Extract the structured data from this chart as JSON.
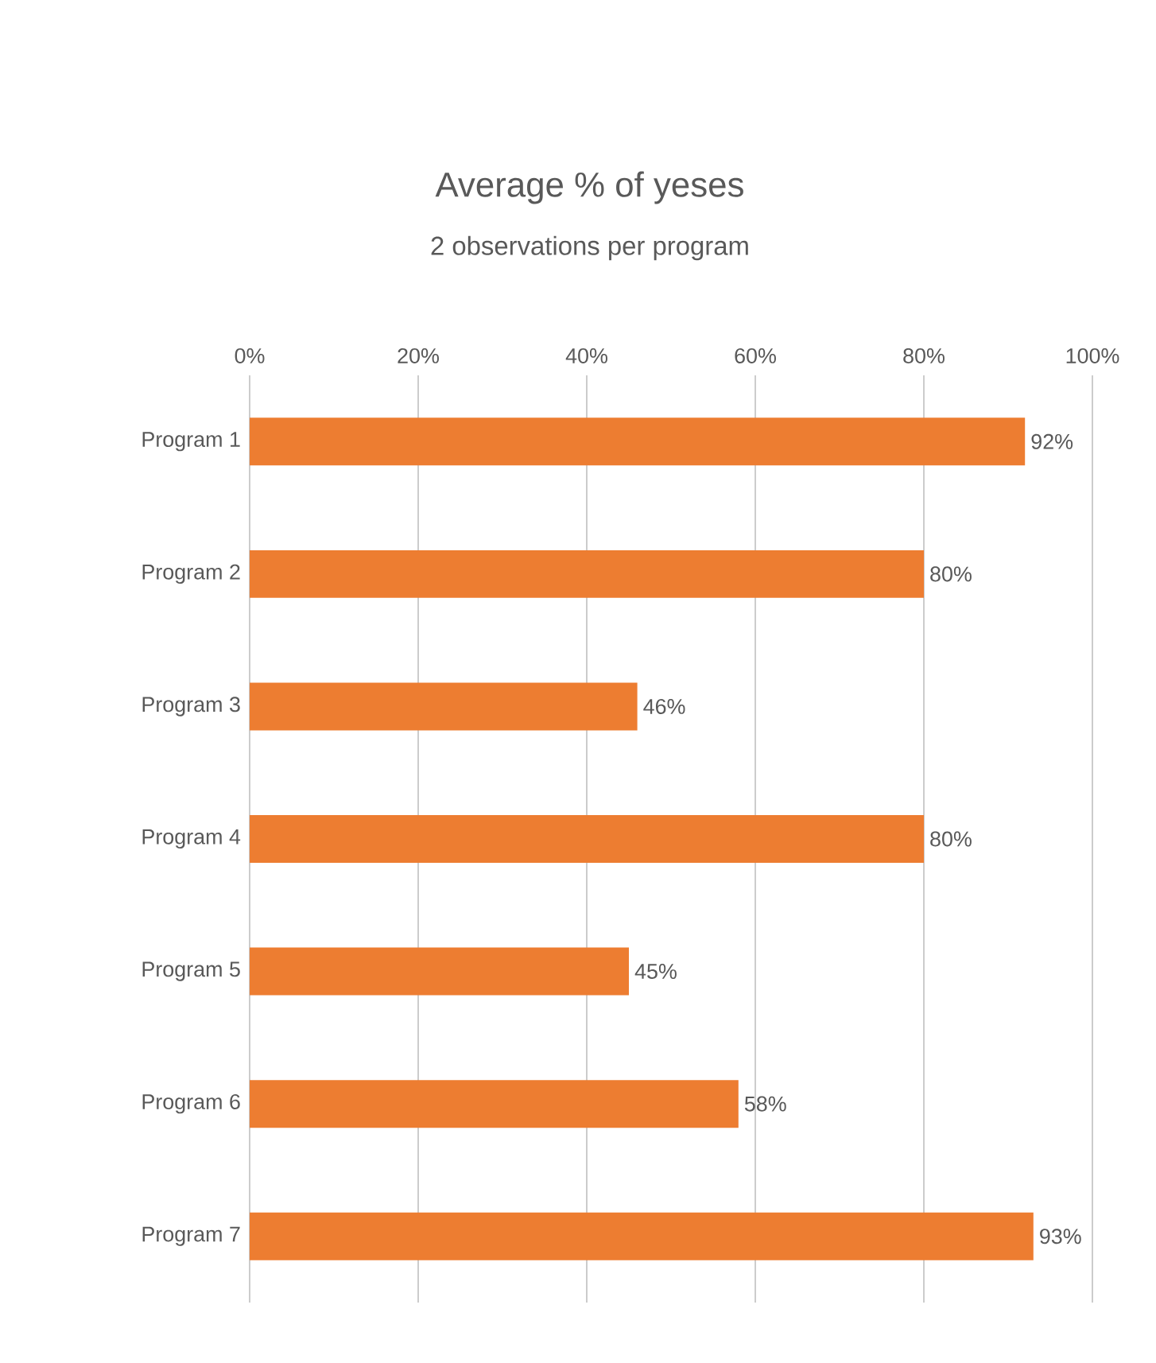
{
  "chart_data": {
    "type": "bar",
    "orientation": "horizontal",
    "title": "Average % of yeses",
    "subtitle": "2 observations per program",
    "categories": [
      "Program 1",
      "Program 2",
      "Program 3",
      "Program 4",
      "Program 5",
      "Program 6",
      "Program 7"
    ],
    "values": [
      92,
      80,
      46,
      80,
      45,
      58,
      93
    ],
    "value_labels": [
      "92%",
      "80%",
      "46%",
      "80%",
      "45%",
      "58%",
      "93%"
    ],
    "color": "#ed7d31",
    "xlim": [
      0,
      100
    ],
    "xticks": [
      {
        "value": 0,
        "label": "0%"
      },
      {
        "value": 20,
        "label": "20%"
      },
      {
        "value": 40,
        "label": "40%"
      },
      {
        "value": 60,
        "label": "60%"
      },
      {
        "value": 80,
        "label": "80%"
      },
      {
        "value": 100,
        "label": "100%"
      }
    ],
    "grid": "x"
  }
}
